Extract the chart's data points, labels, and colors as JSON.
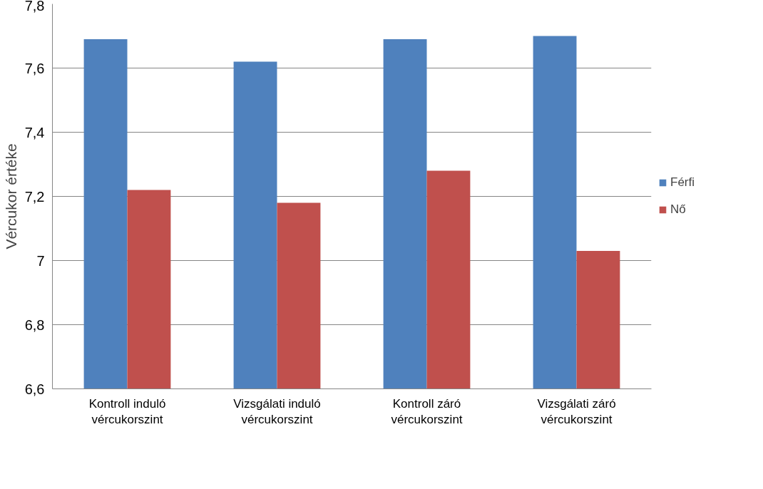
{
  "chart_data": {
    "type": "bar",
    "ylabel": "Vércukor értéke",
    "categories": [
      "Kontroll induló vércukorszint",
      "Vizsgálati induló vércukorszint",
      "Kontroll záró vércukorszint",
      "Vizsgálati záró vércukorszint"
    ],
    "series": [
      {
        "name": "Férfi",
        "color": "#4f81bd",
        "values": [
          7.69,
          7.62,
          7.69,
          7.7
        ]
      },
      {
        "name": "Nő",
        "color": "#c0504d",
        "values": [
          7.22,
          7.18,
          7.28,
          7.03
        ]
      }
    ],
    "ylim": [
      6.6,
      7.8
    ],
    "yticks": [
      {
        "value": 6.6,
        "label": "6,6"
      },
      {
        "value": 6.8,
        "label": "6,8"
      },
      7,
      {
        "value": 7.2,
        "label": "7,2"
      },
      {
        "value": 7.4,
        "label": "7,4"
      },
      {
        "value": 7.6,
        "label": "7,6"
      },
      {
        "value": 7.8,
        "label": "7,8"
      }
    ],
    "grid": "y",
    "legend": "right"
  }
}
